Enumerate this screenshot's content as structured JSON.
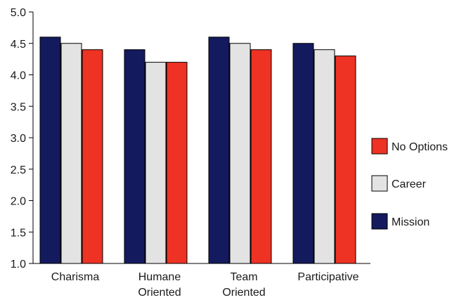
{
  "chart_data": {
    "type": "bar",
    "title": "",
    "xlabel": "",
    "ylabel": "",
    "ylim": [
      1.0,
      5.0
    ],
    "yticks": [
      "1.0",
      "1.5",
      "2.0",
      "2.5",
      "3.0",
      "3.5",
      "4.0",
      "4.5",
      "5.0"
    ],
    "categories": [
      [
        "Charisma"
      ],
      [
        "Humane",
        "Oriented"
      ],
      [
        "Team",
        "Oriented"
      ],
      [
        "Participative"
      ]
    ],
    "series": [
      {
        "name": "Mission",
        "color": "#141a5e",
        "values": [
          4.6,
          4.4,
          4.6,
          4.5
        ]
      },
      {
        "name": "Career",
        "color": "#e3e3e3",
        "values": [
          4.5,
          4.2,
          4.5,
          4.4
        ]
      },
      {
        "name": "No Options",
        "color": "#ee3224",
        "values": [
          4.4,
          4.2,
          4.4,
          4.3
        ]
      }
    ],
    "legend": {
      "position": "right",
      "order": [
        "No Options",
        "Career",
        "Mission"
      ]
    },
    "grid": false
  }
}
